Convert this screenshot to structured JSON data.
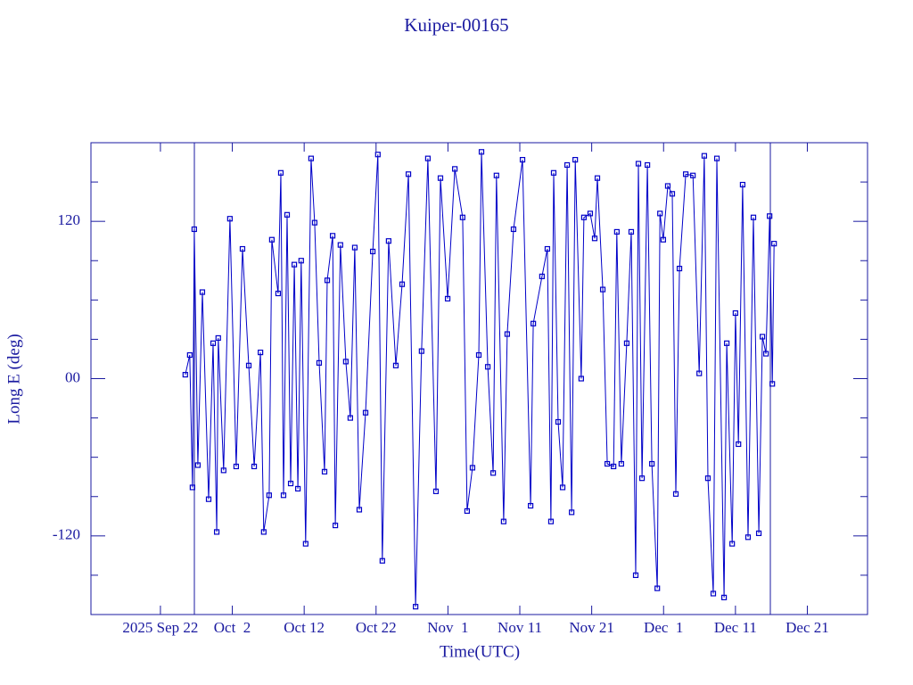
{
  "chart_data": {
    "type": "line",
    "title": "Kuiper-00165",
    "xlabel": "Time(UTC)",
    "ylabel": "Long E (deg)",
    "xlim": [
      "2025-09-12T08:00",
      "2025-12-29T09:00"
    ],
    "xticks": [
      {
        "value": "2025-09-22T00:00",
        "label": "2025 Sep 22"
      },
      {
        "value": "2025-10-02T00:00",
        "label": "Oct  2"
      },
      {
        "value": "2025-10-12T00:00",
        "label": "Oct 12"
      },
      {
        "value": "2025-10-22T00:00",
        "label": "Oct 22"
      },
      {
        "value": "2025-11-01T00:00",
        "label": "Nov  1"
      },
      {
        "value": "2025-11-11T00:00",
        "label": "Nov 11"
      },
      {
        "value": "2025-11-21T00:00",
        "label": "Nov 21"
      },
      {
        "value": "2025-12-01T00:00",
        "label": "Dec  1"
      },
      {
        "value": "2025-12-11T00:00",
        "label": "Dec 11"
      },
      {
        "value": "2025-12-21T00:00",
        "label": "Dec 21"
      }
    ],
    "ylim": [
      -180,
      180
    ],
    "yticks": [
      -120,
      {
        "value": 0,
        "label": "00"
      },
      120
    ],
    "yminorticks": [
      -150,
      -90,
      -60,
      -30,
      30,
      60,
      90,
      150
    ],
    "series": [
      {
        "color": "#0000c8",
        "x": [
          "2025-09-25T11:00",
          "2025-09-26T02:00",
          "2025-09-26T11:00",
          "2025-09-26T17:00",
          "2025-09-27T05:00",
          "2025-09-27T20:00",
          "2025-09-28T17:00",
          "2025-09-29T08:00",
          "2025-09-29T20:00",
          "2025-09-30T01:00",
          "2025-09-30T19:00",
          "2025-10-01T16:00",
          "2025-10-02T13:00",
          "2025-10-03T10:00",
          "2025-10-04T07:00",
          "2025-10-05T01:00",
          "2025-10-05T22:00",
          "2025-10-06T09:00",
          "2025-10-07T03:00",
          "2025-10-07T12:00",
          "2025-10-08T09:00",
          "2025-10-08T18:00",
          "2025-10-09T03:00",
          "2025-10-09T15:00",
          "2025-10-10T03:00",
          "2025-10-10T15:00",
          "2025-10-11T03:00",
          "2025-10-11T14:00",
          "2025-10-12T05:00",
          "2025-10-12T23:00",
          "2025-10-13T11:00",
          "2025-10-14T02:00",
          "2025-10-14T20:00",
          "2025-10-15T05:00",
          "2025-10-15T23:00",
          "2025-10-16T08:00",
          "2025-10-17T01:00",
          "2025-10-17T19:00",
          "2025-10-18T10:00",
          "2025-10-19T01:00",
          "2025-10-19T16:00",
          "2025-10-20T13:00",
          "2025-10-21T13:00",
          "2025-10-22T06:00",
          "2025-10-22T21:00",
          "2025-10-23T18:00",
          "2025-10-24T18:00",
          "2025-10-25T15:00",
          "2025-10-26T12:00",
          "2025-10-27T12:00",
          "2025-10-28T08:00",
          "2025-10-29T05:00",
          "2025-10-30T08:00",
          "2025-10-30T23:00",
          "2025-10-31T23:00",
          "2025-11-01T23:00",
          "2025-11-03T01:00",
          "2025-11-03T16:00",
          "2025-11-04T10:00",
          "2025-11-05T07:00",
          "2025-11-05T16:00",
          "2025-11-06T13:00",
          "2025-11-07T07:00",
          "2025-11-07T18:00",
          "2025-11-08T18:00",
          "2025-11-09T06:00",
          "2025-11-10T03:00",
          "2025-11-11T09:00",
          "2025-11-12T12:00",
          "2025-11-12T21:00",
          "2025-11-14T02:00",
          "2025-11-14T20:00",
          "2025-11-15T08:00",
          "2025-11-15T17:00",
          "2025-11-16T08:00",
          "2025-11-16T23:00",
          "2025-11-17T14:00",
          "2025-11-18T05:00",
          "2025-11-18T17:00",
          "2025-11-19T13:00",
          "2025-11-19T22:00",
          "2025-11-20T19:00",
          "2025-11-21T10:00",
          "2025-11-21T19:00",
          "2025-11-22T13:00",
          "2025-11-23T04:00",
          "2025-11-24T01:00",
          "2025-11-24T12:00",
          "2025-11-25T03:00",
          "2025-11-25T21:00",
          "2025-11-26T12:00",
          "2025-11-27T03:00",
          "2025-11-27T12:00",
          "2025-11-28T00:00",
          "2025-11-28T18:00",
          "2025-11-29T09:00",
          "2025-11-30T03:00",
          "2025-11-30T12:00",
          "2025-11-30T23:00",
          "2025-12-01T14:00",
          "2025-12-02T05:00",
          "2025-12-02T17:00",
          "2025-12-03T05:00",
          "2025-12-04T02:00",
          "2025-12-05T02:00",
          "2025-12-05T23:00",
          "2025-12-06T16:00",
          "2025-12-07T04:00",
          "2025-12-07T22:00",
          "2025-12-08T10:00",
          "2025-12-09T10:00",
          "2025-12-09T19:00",
          "2025-12-10T13:00",
          "2025-12-11T00:00",
          "2025-12-11T10:00",
          "2025-12-12T00:00",
          "2025-12-12T18:00",
          "2025-12-13T12:00",
          "2025-12-14T06:00",
          "2025-12-14T18:00",
          "2025-12-15T06:00",
          "2025-12-15T18:00",
          "2025-12-16T03:00",
          "2025-12-16T09:00"
        ],
        "values": [
          3,
          18,
          -83,
          114,
          -66,
          66,
          -92,
          27,
          -117,
          31,
          -70,
          122,
          -67,
          99,
          10,
          -67,
          20,
          -117,
          -89,
          106,
          65,
          157,
          -89,
          125,
          -80,
          87,
          -84,
          90,
          -126,
          168,
          119,
          12,
          -71,
          75,
          109,
          -112,
          102,
          13,
          -30,
          100,
          -100,
          -26,
          97,
          171,
          -139,
          105,
          10,
          72,
          156,
          -174,
          21,
          168,
          -86,
          153,
          61,
          160,
          123,
          -101,
          -68,
          18,
          173,
          9,
          -72,
          155,
          -109,
          34,
          114,
          167,
          -97,
          42,
          78,
          99,
          -109,
          157,
          -33,
          -83,
          163,
          -102,
          167,
          0,
          123,
          126,
          107,
          153,
          68,
          -65,
          -67,
          112,
          -65,
          27,
          112,
          -150,
          164,
          -76,
          163,
          -65,
          -160,
          126,
          106,
          147,
          141,
          -88,
          84,
          156,
          155,
          4,
          170,
          -76,
          -164,
          168,
          -167,
          27,
          -126,
          50,
          -50,
          148,
          -121,
          123,
          -118,
          32,
          19,
          124,
          -4,
          103
        ]
      }
    ]
  }
}
